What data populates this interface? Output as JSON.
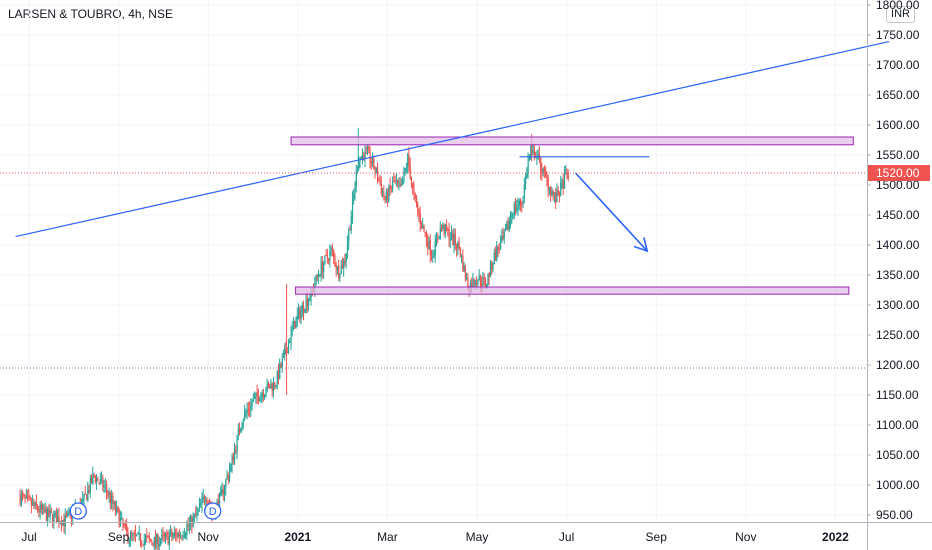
{
  "header": {
    "title": "LARSEN & TOUBRO, 4h, NSE",
    "currency": "INR"
  },
  "price_axis": {
    "ticks": [
      "1800.00",
      "1750.00",
      "1700.00",
      "1650.00",
      "1600.00",
      "1550.00",
      "1500.00",
      "1450.00",
      "1400.00",
      "1350.00",
      "1300.00",
      "1250.00",
      "1200.00",
      "1150.00",
      "1100.00",
      "1050.00",
      "1000.00",
      "950.00"
    ],
    "current_price_label": "1520.00"
  },
  "time_axis": {
    "ticks": [
      {
        "label": "Jul",
        "t": 0.0,
        "bold": false
      },
      {
        "label": "Sep",
        "t": 2.0,
        "bold": false
      },
      {
        "label": "Nov",
        "t": 4.0,
        "bold": false
      },
      {
        "label": "2021",
        "t": 6.0,
        "bold": true
      },
      {
        "label": "Mar",
        "t": 8.0,
        "bold": false
      },
      {
        "label": "May",
        "t": 10.0,
        "bold": false
      },
      {
        "label": "Jul",
        "t": 12.0,
        "bold": false
      },
      {
        "label": "Sep",
        "t": 14.0,
        "bold": false
      },
      {
        "label": "Nov",
        "t": 16.0,
        "bold": false
      },
      {
        "label": "2022",
        "t": 18.0,
        "bold": true
      }
    ]
  },
  "markers": [
    {
      "label": "D",
      "t": 1.1
    },
    {
      "label": "D",
      "t": 4.1
    }
  ],
  "colors": {
    "up": "#26a69a",
    "down": "#ef5350",
    "zone_fill": "#e1bee7",
    "zone_stroke": "#9c27b0",
    "trend_line": "#2962ff",
    "arrow": "#2962ff",
    "current_price_bg": "#ef5350",
    "grid": "#f0f3fa"
  },
  "chart_data": {
    "type": "candlestick",
    "symbol": "LARSEN & TOUBRO",
    "interval": "4h",
    "exchange": "NSE",
    "y_range": [
      930,
      1810
    ],
    "x_range_months": [
      "2020-07",
      "2022-02"
    ],
    "grid": true,
    "last_price": 1520.0,
    "dotted_level": 1195,
    "path_keypoints": [
      [
        -0.2,
        980
      ],
      [
        0.1,
        965
      ],
      [
        0.4,
        950
      ],
      [
        0.8,
        940
      ],
      [
        1.2,
        970
      ],
      [
        1.45,
        1015
      ],
      [
        1.7,
        995
      ],
      [
        1.95,
        955
      ],
      [
        2.2,
        915
      ],
      [
        2.8,
        905
      ],
      [
        3.4,
        920
      ],
      [
        3.7,
        945
      ],
      [
        3.95,
        985
      ],
      [
        4.1,
        950
      ],
      [
        4.3,
        985
      ],
      [
        4.5,
        1030
      ],
      [
        4.75,
        1110
      ],
      [
        5.0,
        1140
      ],
      [
        5.2,
        1155
      ],
      [
        5.5,
        1170
      ],
      [
        5.7,
        1215
      ],
      [
        5.9,
        1265
      ],
      [
        6.1,
        1295
      ],
      [
        6.3,
        1320
      ],
      [
        6.5,
        1360
      ],
      [
        6.75,
        1390
      ],
      [
        6.9,
        1355
      ],
      [
        7.05,
        1375
      ],
      [
        7.2,
        1455
      ],
      [
        7.35,
        1545
      ],
      [
        7.55,
        1555
      ],
      [
        7.75,
        1520
      ],
      [
        7.95,
        1475
      ],
      [
        8.15,
        1505
      ],
      [
        8.3,
        1490
      ],
      [
        8.45,
        1545
      ],
      [
        8.6,
        1475
      ],
      [
        8.8,
        1425
      ],
      [
        9.0,
        1385
      ],
      [
        9.2,
        1430
      ],
      [
        9.4,
        1415
      ],
      [
        9.6,
        1395
      ],
      [
        9.8,
        1330
      ],
      [
        10.0,
        1345
      ],
      [
        10.2,
        1335
      ],
      [
        10.4,
        1385
      ],
      [
        10.6,
        1410
      ],
      [
        10.8,
        1460
      ],
      [
        11.0,
        1470
      ],
      [
        11.15,
        1545
      ],
      [
        11.3,
        1555
      ],
      [
        11.45,
        1525
      ],
      [
        11.6,
        1500
      ],
      [
        11.75,
        1475
      ],
      [
        11.85,
        1490
      ],
      [
        11.95,
        1510
      ],
      [
        12.05,
        1520
      ]
    ],
    "annotations": {
      "resistance_zone": {
        "t_start": 5.85,
        "t_end": 18.4,
        "price_low": 1567,
        "price_high": 1580
      },
      "support_zone": {
        "t_start": 5.95,
        "t_end": 18.3,
        "price_low": 1318,
        "price_high": 1330
      },
      "trend_line": {
        "t1": -0.3,
        "p1": 1414,
        "t2": 19.2,
        "p2": 1739
      },
      "neckline": {
        "t1": 10.95,
        "t2": 13.85,
        "price": 1547
      },
      "arrow": {
        "t1": 12.2,
        "p1": 1520,
        "t2": 13.8,
        "p2": 1390
      }
    }
  }
}
